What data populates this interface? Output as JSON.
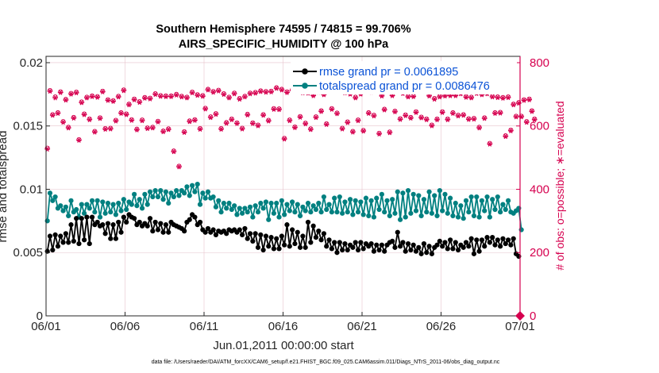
{
  "chart_data": {
    "type": "line",
    "title": "Southern Hemisphere 74595 / 74815 = 99.706%",
    "subtitle": "AIRS_SPECIFIC_HUMIDITY @ 100 hPa",
    "xlabel": "Jun.01,2011 00:00:00 start",
    "ylabel": "rmse and totalspread",
    "ylabel_right": "# of obs: o=possible; ∗=evaluated",
    "x_ticks": [
      "06/01",
      "06/06",
      "06/11",
      "06/16",
      "06/21",
      "06/26",
      "07/01"
    ],
    "y_ticks": [
      "0",
      "0.005",
      "0.01",
      "0.015",
      "0.02"
    ],
    "y_ticks_right": [
      "0",
      "200",
      "400",
      "600",
      "800"
    ],
    "ylim": [
      0,
      0.0205
    ],
    "ylim_right": [
      0,
      820
    ],
    "xlim_days": [
      0,
      30
    ],
    "grid": true,
    "legend_position": "top-right",
    "footnote": "data file: /Users/raeder/DAI/ATM_forcXX/CAM6_setup/f.e21.FHIST_BGC.f09_025.CAM6assim.011/Diags_NTrS_2011-06/obs_diag_output.nc",
    "colors": {
      "rmse": "#000000",
      "spread": "#008080",
      "obs": "#d6004f"
    },
    "series": [
      {
        "name": "rmse grand pr = 0.0061895",
        "values": [
          0.0051,
          0.0063,
          0.0052,
          0.0064,
          0.0055,
          0.0063,
          0.0058,
          0.0065,
          0.0058,
          0.0072,
          0.0059,
          0.0077,
          0.0057,
          0.0077,
          0.006,
          0.0078,
          0.0057,
          0.0078,
          0.0072,
          0.0074,
          0.0071,
          0.0072,
          0.0065,
          0.0073,
          0.0061,
          0.0072,
          0.0061,
          0.0074,
          0.0066,
          0.0078,
          0.0074,
          0.008,
          0.0078,
          0.0077,
          0.0072,
          0.0074,
          0.0071,
          0.0073,
          0.0071,
          0.0077,
          0.0067,
          0.0074,
          0.0068,
          0.0073,
          0.0066,
          0.0072,
          0.0066,
          0.0074,
          0.0072,
          0.0071,
          0.007,
          0.0069,
          0.0067,
          0.0074,
          0.0076,
          0.008,
          0.0078,
          0.0072,
          0.0074,
          0.0068,
          0.0066,
          0.0069,
          0.0066,
          0.0068,
          0.0064,
          0.0067,
          0.0066,
          0.0067,
          0.0065,
          0.0068,
          0.0067,
          0.0068,
          0.0066,
          0.0068,
          0.0064,
          0.0069,
          0.0061,
          0.0065,
          0.0059,
          0.0065,
          0.0054,
          0.0064,
          0.0052,
          0.0063,
          0.0055,
          0.0062,
          0.0053,
          0.0061,
          0.0053,
          0.0063,
          0.0056,
          0.0072,
          0.0055,
          0.0068,
          0.0057,
          0.0066,
          0.0054,
          0.0063,
          0.0054,
          0.0074,
          0.0058,
          0.0071,
          0.0062,
          0.0067,
          0.006,
          0.0065,
          0.0055,
          0.006,
          0.0053,
          0.0058,
          0.005,
          0.0058,
          0.0052,
          0.0057,
          0.0052,
          0.0056,
          0.0054,
          0.0058,
          0.0052,
          0.0058,
          0.0053,
          0.0057,
          0.0055,
          0.0057,
          0.0051,
          0.0056,
          0.0052,
          0.0056,
          0.0051,
          0.0056,
          0.0058,
          0.0059,
          0.0054,
          0.0066,
          0.0055,
          0.0058,
          0.0051,
          0.0057,
          0.0052,
          0.0056,
          0.0051,
          0.0054,
          0.0049,
          0.0057,
          0.005,
          0.0055,
          0.0049,
          0.0054,
          0.0056,
          0.0059,
          0.0055,
          0.0058,
          0.0053,
          0.006,
          0.0053,
          0.0058,
          0.0052,
          0.0056,
          0.0054,
          0.0058,
          0.0055,
          0.0061,
          0.0049,
          0.006,
          0.0051,
          0.006,
          0.0055,
          0.0062,
          0.0058,
          0.0062,
          0.0056,
          0.006,
          0.0055,
          0.0061,
          0.0057,
          0.006,
          0.0056,
          0.0061,
          0.0049,
          0.0047
        ]
      },
      {
        "name": "totalspread grand pr = 0.0086476",
        "values": [
          0.0075,
          0.0097,
          0.0091,
          0.0094,
          0.0085,
          0.0087,
          0.0083,
          0.0086,
          0.0079,
          0.0091,
          0.0082,
          0.0084,
          0.0078,
          0.0088,
          0.0081,
          0.0088,
          0.0085,
          0.0091,
          0.0082,
          0.0091,
          0.0078,
          0.009,
          0.0081,
          0.0089,
          0.0082,
          0.0088,
          0.008,
          0.0089,
          0.0083,
          0.0092,
          0.0084,
          0.009,
          0.0088,
          0.0096,
          0.0087,
          0.0092,
          0.0085,
          0.0096,
          0.0088,
          0.0098,
          0.0094,
          0.0099,
          0.0094,
          0.0099,
          0.0092,
          0.0098,
          0.0089,
          0.0097,
          0.0094,
          0.0099,
          0.0095,
          0.0099,
          0.0097,
          0.0102,
          0.0095,
          0.0103,
          0.0098,
          0.0104,
          0.0088,
          0.0097,
          0.0093,
          0.0098,
          0.0093,
          0.0094,
          0.0086,
          0.0091,
          0.0082,
          0.0089,
          0.0085,
          0.0089,
          0.0084,
          0.0087,
          0.008,
          0.0085,
          0.0081,
          0.0085,
          0.0082,
          0.0086,
          0.0078,
          0.0087,
          0.0082,
          0.0089,
          0.0085,
          0.009,
          0.0076,
          0.0089,
          0.0081,
          0.0089,
          0.0078,
          0.0091,
          0.008,
          0.0088,
          0.0083,
          0.009,
          0.0082,
          0.0088,
          0.0079,
          0.0086,
          0.0083,
          0.0089,
          0.0082,
          0.0087,
          0.0084,
          0.0089,
          0.0082,
          0.0094,
          0.0084,
          0.0088,
          0.0082,
          0.0093,
          0.0082,
          0.0094,
          0.0081,
          0.009,
          0.0082,
          0.0092,
          0.008,
          0.0091,
          0.0082,
          0.009,
          0.008,
          0.0093,
          0.0079,
          0.0091,
          0.0078,
          0.0093,
          0.0084,
          0.0096,
          0.0082,
          0.0091,
          0.0079,
          0.0092,
          0.0081,
          0.0098,
          0.0076,
          0.0097,
          0.0078,
          0.0099,
          0.0081,
          0.0096,
          0.0083,
          0.0095,
          0.0079,
          0.0092,
          0.0082,
          0.0098,
          0.0081,
          0.0095,
          0.0079,
          0.0099,
          0.0083,
          0.0096,
          0.0081,
          0.0093,
          0.0079,
          0.0089,
          0.0078,
          0.0087,
          0.0077,
          0.0091,
          0.0082,
          0.0094,
          0.0079,
          0.0094,
          0.0078,
          0.0091,
          0.0083,
          0.0094,
          0.0078,
          0.0092,
          0.0084,
          0.0094,
          0.0082,
          0.0088,
          0.0084,
          0.0091,
          0.0082,
          0.0081,
          0.0083,
          0.0085,
          0.0068
        ]
      },
      {
        "name": "obs_evaluated",
        "values": [
          527,
          710,
          634,
          689,
          640,
          706,
          612,
          682,
          594,
          701,
          625,
          705,
          555,
          674,
          636,
          689,
          620,
          693,
          581,
          691,
          624,
          708,
          590,
          681,
          591,
          678,
          616,
          692,
          640,
          712,
          636,
          667,
          618,
          683,
          588,
          675,
          617,
          688,
          592,
          686,
          594,
          700,
          613,
          694,
          582,
          693,
          589,
          693,
          519,
          698,
          471,
          692,
          580,
          689,
          614,
          705,
          618,
          697,
          590,
          694,
          654,
          714,
          627,
          707,
          637,
          711,
          590,
          700,
          609,
          689,
          620,
          702,
          608,
          685,
          591,
          692,
          635,
          702,
          608,
          704,
          601,
          709,
          634,
          707,
          616,
          708,
          653,
          719,
          652,
          714,
          559,
          706,
          617,
          712,
          595,
          716,
          628,
          705,
          607,
          704,
          589,
          696,
          627,
          707,
          646,
          699,
          605,
          708,
          653,
          712,
          639,
          714,
          591,
          705,
          611,
          701,
          581,
          689,
          617,
          701,
          584,
          711,
          640,
          707,
          632,
          711,
          575,
          695,
          651,
          712,
          579,
          696,
          645,
          719,
          621,
          703,
          633,
          692,
          625,
          693,
          643,
          712,
          626,
          712,
          620,
          695,
          601,
          685,
          620,
          692,
          643,
          695,
          620,
          696,
          640,
          696,
          632,
          702,
          634,
          691,
          621,
          689,
          622,
          703,
          594,
          699,
          624,
          702,
          543,
          692,
          640,
          690,
          641,
          688,
          567,
          690,
          585,
          667,
          629,
          672,
          629,
          681,
          612,
          683,
          646,
          620
        ]
      },
      {
        "name": "obs_possible",
        "values": [
          530,
          712,
          636,
          692,
          642,
          708,
          614,
          684,
          596,
          703,
          627,
          707,
          557,
          676,
          638,
          691,
          622,
          695,
          583,
          693,
          626,
          710,
          592,
          683,
          593,
          680,
          618,
          694,
          642,
          714,
          638,
          669,
          620,
          685,
          590,
          677,
          619,
          690,
          594,
          688,
          596,
          702,
          615,
          696,
          584,
          695,
          591,
          695,
          521,
          700,
          473,
          694,
          582,
          691,
          616,
          707,
          620,
          699,
          592,
          696,
          656,
          716,
          629,
          709,
          639,
          713,
          592,
          702,
          611,
          691,
          622,
          704,
          610,
          687,
          593,
          694,
          637,
          704,
          610,
          706,
          603,
          711,
          636,
          709,
          618,
          710,
          655,
          721,
          654,
          716,
          561,
          708,
          619,
          714,
          597,
          718,
          630,
          707,
          609,
          706,
          591,
          698,
          629,
          709,
          648,
          701,
          607,
          710,
          655,
          714,
          641,
          716,
          593,
          707,
          613,
          703,
          583,
          691,
          619,
          703,
          586,
          713,
          642,
          709,
          634,
          713,
          577,
          697,
          653,
          714,
          581,
          698,
          647,
          721,
          623,
          705,
          635,
          694,
          627,
          695,
          645,
          714,
          628,
          714,
          622,
          697,
          603,
          687,
          622,
          694,
          645,
          697,
          622,
          698,
          642,
          698,
          634,
          704,
          636,
          693,
          623,
          691,
          624,
          705,
          596,
          701,
          626,
          704,
          545,
          694,
          642,
          692,
          643,
          690,
          569,
          692,
          587,
          669,
          631,
          674,
          631,
          683,
          614,
          685,
          648,
          622
        ]
      }
    ]
  }
}
